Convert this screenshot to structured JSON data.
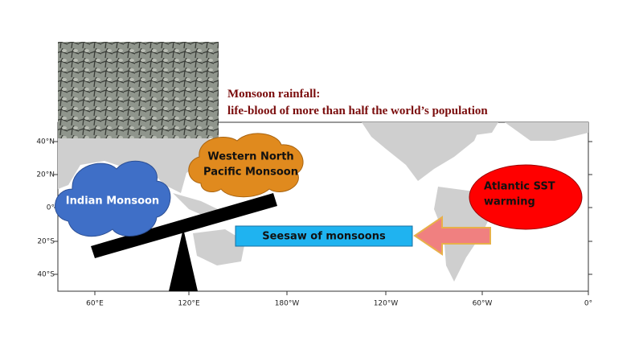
{
  "header": {
    "lines": [
      "Monsoon rainfall:",
      "life-blood of more than half the world’s population"
    ]
  },
  "map": {
    "lat_labels": [
      "40°N",
      "20°N",
      "0°",
      "20°S",
      "40°S"
    ],
    "lon_labels": [
      "60°E",
      "120°E",
      "180°W",
      "120°W",
      "60°W",
      "0°"
    ]
  },
  "labels": {
    "indian": "Indian Monsoon",
    "wnp": [
      "Western North",
      "Pacific Monsoon"
    ],
    "atlantic": [
      "Atlantic SST",
      "warming"
    ],
    "seesaw": "Seesaw of monsoons"
  }
}
